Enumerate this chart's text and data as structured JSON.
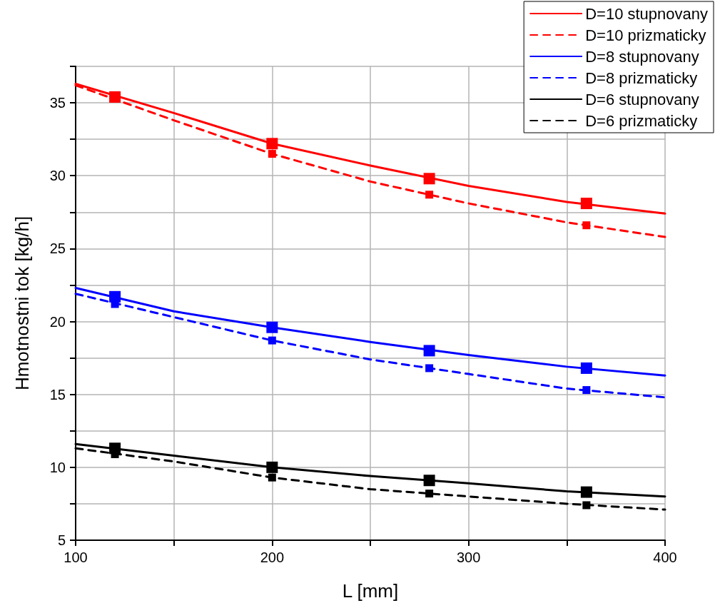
{
  "chart_data": {
    "type": "line",
    "xlabel": "L [mm]",
    "ylabel": "Hmotnostni tok [kg/h]",
    "xlim": [
      100,
      400
    ],
    "xticks": [
      100,
      {
        "value": 150,
        "label": null
      },
      200,
      {
        "value": 250,
        "label": null
      },
      300,
      {
        "value": 350,
        "label": null
      },
      400
    ],
    "ylim": [
      5,
      37.5
    ],
    "yticks": [
      5,
      {
        "value": 7.5,
        "label": null
      },
      10,
      {
        "value": 12.5,
        "label": null
      },
      15,
      {
        "value": 17.5,
        "label": null
      },
      20,
      {
        "value": 22.5,
        "label": null
      },
      25,
      {
        "value": 27.5,
        "label": null
      },
      30,
      {
        "value": 32.5,
        "label": null
      },
      35,
      {
        "value": 37.5,
        "label": null
      }
    ],
    "grid": true,
    "legend": "top right",
    "marker": "none",
    "series": [
      {
        "name": "D=10 stupnovany",
        "color": "#ff0000",
        "line_style": "solid",
        "x": [
          100,
          150,
          200,
          250,
          300,
          350,
          400
        ],
        "values": [
          36.3,
          34.3,
          32.2,
          30.7,
          29.3,
          28.2,
          27.4
        ]
      },
      {
        "name": "D=10 prizmaticky",
        "color": "#ff0000",
        "line_style": "dashed",
        "x": [
          100,
          150,
          200,
          250,
          300,
          350,
          400
        ],
        "values": [
          36.2,
          33.8,
          31.5,
          29.6,
          28.1,
          26.8,
          25.8
        ]
      },
      {
        "name": "D=8 stupnovany",
        "color": "#0000ff",
        "line_style": "solid",
        "x": [
          100,
          150,
          200,
          250,
          300,
          350,
          400
        ],
        "values": [
          22.3,
          20.7,
          19.6,
          18.6,
          17.7,
          16.9,
          16.3
        ]
      },
      {
        "name": "D=8 prizmaticky",
        "color": "#0000ff",
        "line_style": "dashed",
        "x": [
          100,
          150,
          200,
          250,
          300,
          350,
          400
        ],
        "values": [
          21.9,
          20.3,
          18.7,
          17.4,
          16.4,
          15.4,
          14.8
        ]
      },
      {
        "name": "D=6 stupnovany",
        "color": "#000000",
        "line_style": "solid",
        "x": [
          100,
          150,
          200,
          250,
          300,
          350,
          400
        ],
        "values": [
          11.6,
          10.8,
          10.0,
          9.4,
          8.9,
          8.35,
          8.0
        ]
      },
      {
        "name": "D=6 prizmaticky",
        "color": "#000000",
        "line_style": "dashed",
        "x": [
          100,
          150,
          200,
          250,
          300,
          350,
          400
        ],
        "values": [
          11.3,
          10.4,
          9.3,
          8.5,
          8.0,
          7.5,
          7.1
        ]
      },
      {
        "type": "scatter",
        "marker": "square",
        "color": "#ff0000",
        "x": [
          120,
          200,
          280,
          360
        ],
        "values": [
          35.4,
          32.2,
          29.8,
          28.1
        ]
      },
      {
        "type": "scatter",
        "marker": "square",
        "color": "#ff0000",
        "x": [
          120,
          200,
          280,
          360
        ],
        "values": [
          35.3,
          31.5,
          28.7,
          26.6
        ]
      },
      {
        "type": "scatter",
        "marker": "square",
        "color": "#0000ff",
        "x": [
          120,
          200,
          280,
          360
        ],
        "values": [
          21.7,
          19.6,
          18.0,
          16.8
        ]
      },
      {
        "type": "scatter",
        "marker": "square",
        "color": "#0000ff",
        "x": [
          120,
          200,
          280,
          360
        ],
        "values": [
          21.2,
          18.7,
          16.8,
          15.3
        ]
      },
      {
        "type": "scatter",
        "marker": "square",
        "color": "#000000",
        "x": [
          120,
          200,
          280,
          360
        ],
        "values": [
          11.3,
          10.0,
          9.1,
          8.3
        ]
      },
      {
        "type": "scatter",
        "marker": "square",
        "color": "#000000",
        "x": [
          120,
          200,
          280,
          360
        ],
        "values": [
          10.9,
          9.3,
          8.2,
          7.4
        ]
      }
    ]
  }
}
